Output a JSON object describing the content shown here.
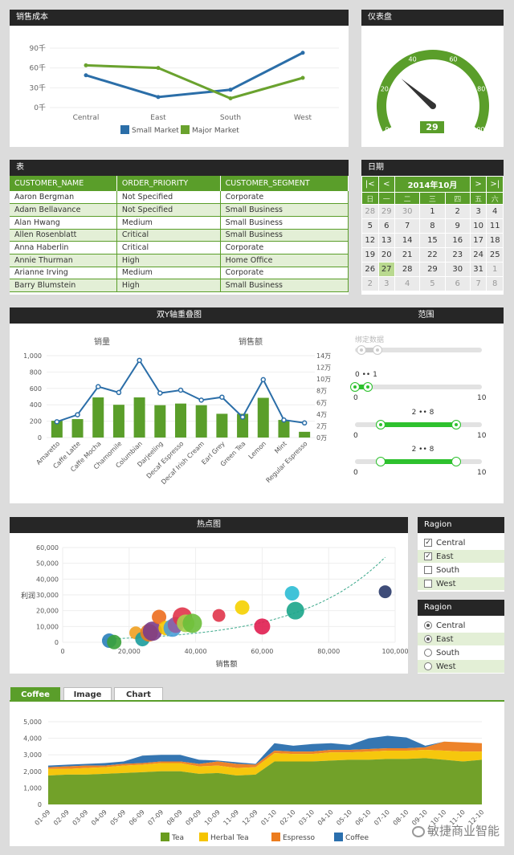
{
  "sales_cost": {
    "title": "销售成本",
    "chart_data": {
      "type": "line",
      "categories": [
        "Central",
        "East",
        "South",
        "West"
      ],
      "series": [
        {
          "name": "Small Market",
          "values": [
            49000,
            16000,
            27000,
            83000
          ],
          "color": "#2b6ea8"
        },
        {
          "name": "Major Market",
          "values": [
            64000,
            60000,
            14000,
            45000
          ],
          "color": "#6aa22e"
        }
      ],
      "yticks": [
        "0千",
        "30千",
        "60千",
        "90千"
      ],
      "ylim": [
        0,
        95000
      ]
    }
  },
  "gauge": {
    "title": "仪表盘",
    "value": "29",
    "value_num": 29,
    "ticks": [
      "0",
      "20",
      "40",
      "60",
      "80",
      "100"
    ]
  },
  "table": {
    "title": "表",
    "columns": [
      "CUSTOMER_NAME",
      "ORDER_PRIORITY",
      "CUSTOMER_SEGMENT"
    ],
    "rows": [
      [
        "Aaron Bergman",
        "Not Specified",
        "Corporate"
      ],
      [
        "Adam Bellavance",
        "Not Specified",
        "Small Business"
      ],
      [
        "Alan Hwang",
        "Medium",
        "Small Business"
      ],
      [
        "Allen Rosenblatt",
        "Critical",
        "Small Business"
      ],
      [
        "Anna Haberlin",
        "Critical",
        "Corporate"
      ],
      [
        "Annie Thurman",
        "High",
        "Home Office"
      ],
      [
        "Arianne Irving",
        "Medium",
        "Corporate"
      ],
      [
        "Barry Blumstein",
        "High",
        "Small Business"
      ]
    ]
  },
  "calendar": {
    "title": "日期",
    "month": "2014年10月",
    "nav": [
      "|<",
      "<",
      ">",
      ">|"
    ],
    "weekdays": [
      "日",
      "一",
      "二",
      "三",
      "四",
      "五",
      "六"
    ],
    "weeks": [
      [
        "28",
        "29",
        "30",
        "1",
        "2",
        "3",
        "4"
      ],
      [
        "5",
        "6",
        "7",
        "8",
        "9",
        "10",
        "11"
      ],
      [
        "12",
        "13",
        "14",
        "15",
        "16",
        "17",
        "18"
      ],
      [
        "19",
        "20",
        "21",
        "22",
        "23",
        "24",
        "25"
      ],
      [
        "26",
        "27",
        "28",
        "29",
        "30",
        "31",
        "1"
      ],
      [
        "2",
        "3",
        "4",
        "5",
        "6",
        "7",
        "8"
      ]
    ],
    "today": "27"
  },
  "dual_axis": {
    "title": "双Y轴重叠图",
    "left_label": "销量",
    "right_label": "销售额",
    "chart_data": {
      "type": "bar",
      "categories": [
        "Amaretto",
        "Caffe Latte",
        "Caffe Mocha",
        "Chamomile",
        "Columbian",
        "Darjeeling",
        "Decaf Espresso",
        "Decaf Irish Cream",
        "Earl Grey",
        "Green Tea",
        "Lemon",
        "Mint",
        "Regular Espresso"
      ],
      "series": [
        {
          "name": "销量",
          "values": [
            205,
            225,
            490,
            400,
            490,
            395,
            415,
            395,
            290,
            290,
            485,
            215,
            70
          ],
          "color": "#5a9e2a"
        },
        {
          "name": "销售额",
          "values": [
            27000,
            39000,
            87000,
            77000,
            132000,
            76000,
            81000,
            64000,
            69000,
            35000,
            99000,
            30000,
            25000
          ],
          "color": "#2b6ea8"
        }
      ],
      "left_ticks": [
        "0",
        "200",
        "400",
        "600",
        "800",
        "1,000"
      ],
      "right_ticks": [
        "0万",
        "2万",
        "4万",
        "6万",
        "8万",
        "10万",
        "12万",
        "14万"
      ]
    }
  },
  "range": {
    "title": "范围",
    "sliders": [
      {
        "label": "绑定数据",
        "min": "",
        "max": "",
        "lo": 0.05,
        "hi": 0.18,
        "disabled": true
      },
      {
        "label": "0 •• 1",
        "min": "0",
        "max": "10",
        "lo": 0.0,
        "hi": 0.1,
        "disabled": false
      },
      {
        "label": "2 •• 8",
        "min": "0",
        "max": "10",
        "lo": 0.2,
        "hi": 0.8,
        "disabled": false
      },
      {
        "label": "2 •• 8",
        "min": "0",
        "max": "10",
        "lo": 0.2,
        "hi": 0.8,
        "disabled": false
      }
    ]
  },
  "hotspot": {
    "title": "热点图",
    "xlabel": "销售额",
    "ylabel": "利润",
    "chart_data": {
      "type": "scatter",
      "xticks": [
        "0",
        "20,000",
        "40,000",
        "60,000",
        "80,000",
        "100,000"
      ],
      "yticks": [
        "0",
        "10,000",
        "20,000",
        "30,000",
        "40,000",
        "50,000",
        "60,000"
      ],
      "xlim": [
        0,
        100000
      ],
      "ylim": [
        0,
        62000
      ],
      "points": [
        {
          "x": 14000,
          "y": 1000,
          "r": 9,
          "c": "#2a7fba"
        },
        {
          "x": 15500,
          "y": 100,
          "r": 9,
          "c": "#3aa13a"
        },
        {
          "x": 22000,
          "y": 6000,
          "r": 8,
          "c": "#f0a020"
        },
        {
          "x": 24000,
          "y": 2000,
          "r": 9,
          "c": "#1a9c9c"
        },
        {
          "x": 26000,
          "y": 6000,
          "r": 11,
          "c": "#e87c1e"
        },
        {
          "x": 27000,
          "y": 7000,
          "r": 12,
          "c": "#7a3b8a"
        },
        {
          "x": 29000,
          "y": 16000,
          "r": 9,
          "c": "#ec6d1e"
        },
        {
          "x": 31000,
          "y": 9000,
          "r": 9,
          "c": "#f5c400"
        },
        {
          "x": 33000,
          "y": 9000,
          "r": 11,
          "c": "#4a9fd8"
        },
        {
          "x": 34000,
          "y": 11000,
          "r": 10,
          "c": "#8e5ea2"
        },
        {
          "x": 36000,
          "y": 16000,
          "r": 12,
          "c": "#e0344a"
        },
        {
          "x": 37000,
          "y": 12000,
          "r": 11,
          "c": "#a6d04a"
        },
        {
          "x": 39000,
          "y": 12000,
          "r": 12,
          "c": "#6cbf3a"
        },
        {
          "x": 47000,
          "y": 17000,
          "r": 8,
          "c": "#e0344a"
        },
        {
          "x": 54000,
          "y": 22000,
          "r": 9,
          "c": "#f5d000"
        },
        {
          "x": 60000,
          "y": 10000,
          "r": 10,
          "c": "#e01e50"
        },
        {
          "x": 69000,
          "y": 31000,
          "r": 9,
          "c": "#2bbcd4"
        },
        {
          "x": 70000,
          "y": 20000,
          "r": 11,
          "c": "#1aa58a"
        },
        {
          "x": 97000,
          "y": 32000,
          "r": 8,
          "c": "#2a3a6a"
        }
      ]
    }
  },
  "region_check": {
    "title": "Ragion",
    "options": [
      {
        "label": "Central",
        "checked": true
      },
      {
        "label": "East",
        "checked": true
      },
      {
        "label": "South",
        "checked": false
      },
      {
        "label": "West",
        "checked": false
      }
    ]
  },
  "region_radio": {
    "title": "Ragion",
    "options": [
      {
        "label": "Central",
        "selected": true
      },
      {
        "label": "East",
        "selected": true
      },
      {
        "label": "South",
        "selected": false
      },
      {
        "label": "West",
        "selected": false
      }
    ]
  },
  "tabs": {
    "items": [
      "Coffee",
      "Image",
      "Chart"
    ],
    "active": 0
  },
  "area": {
    "chart_data": {
      "type": "area",
      "x": [
        "01-09",
        "02-09",
        "03-09",
        "04-09",
        "05-09",
        "06-09",
        "07-09",
        "08-09",
        "09-09",
        "10-09",
        "11-09",
        "12-09",
        "01-10",
        "02-10",
        "03-10",
        "04-10",
        "05-10",
        "06-10",
        "07-10",
        "08-10",
        "09-10",
        "10-10",
        "11-10",
        "12-10"
      ],
      "yticks": [
        "0",
        "1,000",
        "2,000",
        "3,000",
        "4,000",
        "5,000"
      ],
      "ylim": [
        0,
        5200
      ],
      "series": [
        {
          "name": "Tea",
          "color": "#6a9c1e",
          "values": [
            1750,
            1800,
            1800,
            1850,
            1900,
            1950,
            2000,
            2000,
            1850,
            1900,
            1750,
            1800,
            2600,
            2600,
            2600,
            2650,
            2700,
            2700,
            2750,
            2750,
            2800,
            2700,
            2600,
            2700
          ]
        },
        {
          "name": "Herbal Tea",
          "color": "#f5c400",
          "values": [
            400,
            350,
            400,
            400,
            450,
            450,
            500,
            500,
            450,
            450,
            450,
            450,
            500,
            450,
            450,
            500,
            450,
            500,
            500,
            500,
            500,
            550,
            600,
            500
          ]
        },
        {
          "name": "Espresso",
          "color": "#ec7c1e",
          "values": [
            100,
            150,
            150,
            100,
            100,
            100,
            100,
            100,
            150,
            250,
            250,
            150,
            150,
            150,
            150,
            150,
            150,
            150,
            150,
            150,
            150,
            550,
            550,
            500
          ]
        },
        {
          "name": "Coffee",
          "color": "#2a6fae",
          "values": [
            100,
            100,
            100,
            150,
            150,
            450,
            400,
            400,
            250,
            50,
            100,
            50,
            450,
            350,
            450,
            400,
            300,
            650,
            750,
            650,
            100,
            0,
            0,
            0
          ]
        }
      ]
    }
  },
  "watermark": "敏捷商业智能"
}
